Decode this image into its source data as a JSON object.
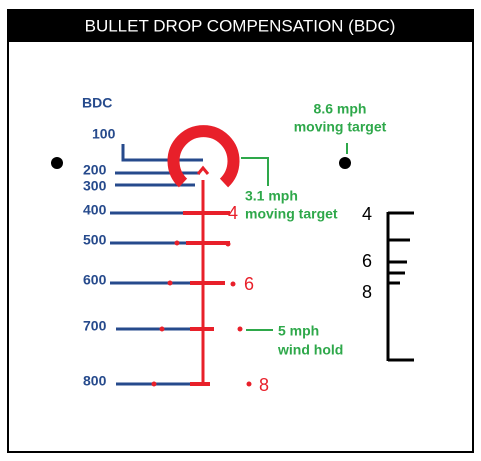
{
  "header": {
    "title": "BULLET DROP COMPENSATION (BDC)"
  },
  "reticle": {
    "label": "BDC",
    "ranges": [
      "100",
      "200",
      "300",
      "400",
      "500",
      "600",
      "700",
      "800"
    ],
    "holdover_labels": [
      "4",
      "6",
      "8"
    ],
    "notes": [
      {
        "line1": "8.6 mph",
        "line2": "moving target"
      },
      {
        "line1": "3.1 mph",
        "line2": "moving target"
      },
      {
        "line1": "5 mph",
        "line2": "wind hold"
      }
    ],
    "scale_labels": [
      "4",
      "6",
      "8"
    ]
  }
}
